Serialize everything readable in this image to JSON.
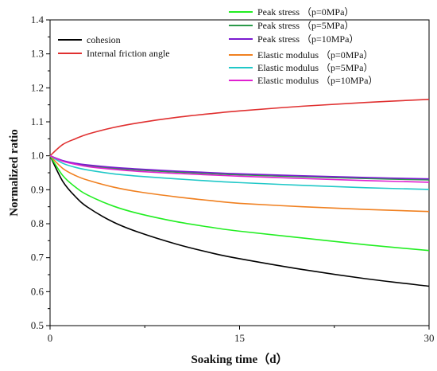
{
  "chart_data": {
    "type": "line",
    "xlabel": "Soaking time（d）",
    "ylabel": "Normalized ratio",
    "xlim": [
      0,
      30
    ],
    "ylim": [
      0.5,
      1.4
    ],
    "x_ticks": [
      "0",
      "15",
      "30"
    ],
    "y_ticks": [
      "0.5",
      "0.6",
      "0.7",
      "0.8",
      "0.9",
      "1.0",
      "1.1",
      "1.2",
      "1.3",
      "1.4"
    ],
    "grid": false,
    "legend": {
      "left_block": [
        "cohesion",
        "Internal friction angle"
      ],
      "right_block_1": [
        "Peak stress （p=0MPa）",
        "Peak stress （p=5MPa）",
        "Peak stress （p=10MPa）"
      ],
      "right_block_2": [
        "Elastic modulus （p=0MPa）",
        "Elastic modulus （p=5MPa）",
        "Elastic modulus （p=10MPa）"
      ]
    },
    "series": [
      {
        "name": "cohesion",
        "color": "#000000",
        "x": [
          0,
          1,
          2,
          3,
          5,
          7,
          10,
          13,
          15,
          20,
          25,
          30
        ],
        "y": [
          1.0,
          0.925,
          0.88,
          0.848,
          0.805,
          0.775,
          0.74,
          0.712,
          0.697,
          0.665,
          0.638,
          0.616
        ]
      },
      {
        "name": "Internal friction angle",
        "color": "#e03030",
        "x": [
          0,
          1,
          2,
          3,
          5,
          7,
          10,
          13,
          15,
          20,
          25,
          30
        ],
        "y": [
          1.0,
          1.033,
          1.05,
          1.064,
          1.083,
          1.097,
          1.113,
          1.125,
          1.132,
          1.146,
          1.157,
          1.166
        ]
      },
      {
        "name": "Peak stress （p=0MPa）",
        "color": "#22ee22",
        "x": [
          0,
          1,
          2,
          3,
          5,
          7,
          10,
          13,
          15,
          20,
          25,
          30
        ],
        "y": [
          1.0,
          0.942,
          0.908,
          0.884,
          0.852,
          0.83,
          0.806,
          0.788,
          0.778,
          0.758,
          0.738,
          0.721
        ]
      },
      {
        "name": "Peak stress （p=5MPa）",
        "color": "#2a9a4a",
        "x": [
          0,
          1,
          2,
          3,
          5,
          7,
          10,
          13,
          15,
          20,
          25,
          30
        ],
        "y": [
          1.0,
          0.985,
          0.977,
          0.971,
          0.963,
          0.958,
          0.952,
          0.947,
          0.944,
          0.938,
          0.933,
          0.929
        ]
      },
      {
        "name": "Peak stress （p=10MPa）",
        "color": "#7a1ad0",
        "x": [
          0,
          1,
          2,
          3,
          5,
          7,
          10,
          13,
          15,
          20,
          25,
          30
        ],
        "y": [
          1.0,
          0.986,
          0.978,
          0.973,
          0.966,
          0.961,
          0.955,
          0.95,
          0.947,
          0.941,
          0.936,
          0.932
        ]
      },
      {
        "name": "Elastic modulus （p=0MPa）",
        "color": "#f08020",
        "x": [
          0,
          1,
          2,
          3,
          5,
          7,
          10,
          13,
          15,
          20,
          25,
          30
        ],
        "y": [
          1.0,
          0.963,
          0.942,
          0.928,
          0.908,
          0.894,
          0.879,
          0.867,
          0.86,
          0.85,
          0.842,
          0.836
        ]
      },
      {
        "name": "Elastic modulus （p=5MPa）",
        "color": "#20c8c8",
        "x": [
          0,
          1,
          2,
          3,
          5,
          7,
          10,
          13,
          15,
          20,
          25,
          30
        ],
        "y": [
          1.0,
          0.978,
          0.966,
          0.958,
          0.947,
          0.94,
          0.932,
          0.925,
          0.921,
          0.913,
          0.906,
          0.901
        ]
      },
      {
        "name": "Elastic modulus （p=10MPa）",
        "color": "#e020d0",
        "x": [
          0,
          1,
          2,
          3,
          5,
          7,
          10,
          13,
          15,
          20,
          25,
          30
        ],
        "y": [
          1.0,
          0.984,
          0.975,
          0.968,
          0.96,
          0.954,
          0.948,
          0.943,
          0.94,
          0.933,
          0.927,
          0.922
        ]
      }
    ]
  }
}
